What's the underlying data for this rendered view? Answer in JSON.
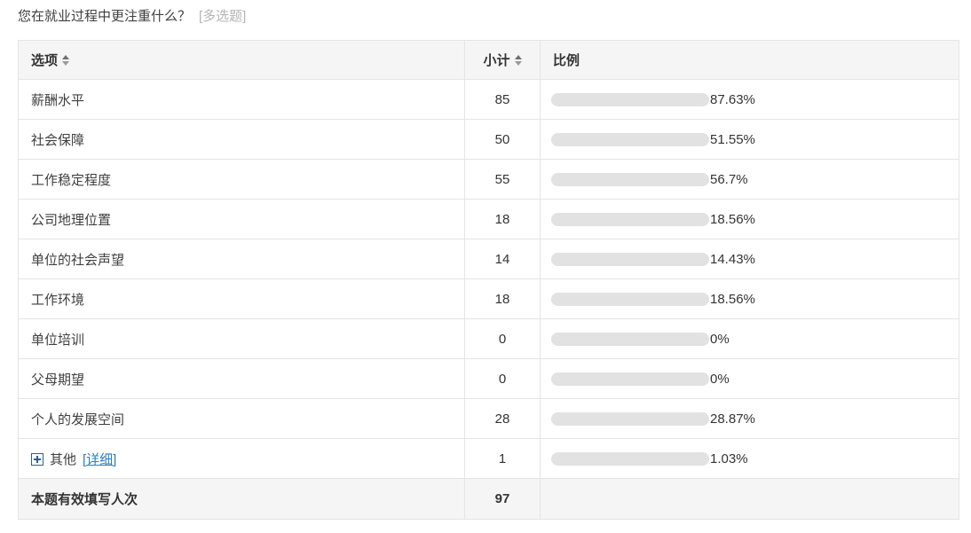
{
  "question": {
    "title": "您在就业过程中更注重什么？",
    "type_tag": "[多选题]"
  },
  "table": {
    "headers": {
      "option": "选项",
      "subtotal": "小计",
      "ratio": "比例"
    },
    "rows": [
      {
        "option": "薪酬水平",
        "subtotal": "85",
        "percent": "87.63%"
      },
      {
        "option": "社会保障",
        "subtotal": "50",
        "percent": "51.55%"
      },
      {
        "option": "工作稳定程度",
        "subtotal": "55",
        "percent": "56.7%"
      },
      {
        "option": "公司地理位置",
        "subtotal": "18",
        "percent": "18.56%"
      },
      {
        "option": "单位的社会声望",
        "subtotal": "14",
        "percent": "14.43%"
      },
      {
        "option": "工作环境",
        "subtotal": "18",
        "percent": "18.56%"
      },
      {
        "option": "单位培训",
        "subtotal": "0",
        "percent": "0%"
      },
      {
        "option": "父母期望",
        "subtotal": "0",
        "percent": "0%"
      },
      {
        "option": "个人的发展空间",
        "subtotal": "28",
        "percent": "28.87%"
      },
      {
        "option": "其他",
        "subtotal": "1",
        "percent": "1.03%",
        "expandable": true,
        "detail_link": "[详细]"
      }
    ],
    "footer": {
      "label": "本题有效填写人次",
      "value": "97"
    }
  },
  "colors": {
    "bar_track": "#e2e2e2",
    "header_bg": "#f5f5f5",
    "link_blue": "#2d7dbd",
    "expand_icon_blue": "#29618f",
    "tag_gray": "#b4b4b4",
    "border": "#e5e5e5"
  }
}
